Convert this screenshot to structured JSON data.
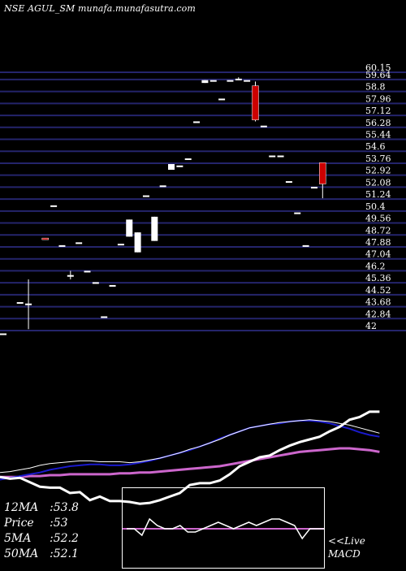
{
  "header": {
    "title": "NSE AGUL_SM munafa.munafasutra.com"
  },
  "chart_data": {
    "type": "candlestick",
    "price_levels": [
      "60.15",
      "59.64",
      "58.8",
      "57.96",
      "57.12",
      "56.28",
      "55.44",
      "54.6",
      "53.76",
      "52.92",
      "52.08",
      "51.24",
      "50.4",
      "49.56",
      "48.72",
      "47.88",
      "47.04",
      "46.2",
      "45.36",
      "44.52",
      "43.68",
      "42.84",
      "42"
    ],
    "ylim": [
      42,
      60.15
    ],
    "candles": [
      {
        "x": 0,
        "o": 41.8,
        "h": 41.8,
        "l": 41.8,
        "c": 41.8
      },
      {
        "x": 2,
        "o": 44.0,
        "h": 44.0,
        "l": 44.0,
        "c": 44.0
      },
      {
        "x": 3,
        "o": 43.9,
        "h": 45.6,
        "l": 42.1,
        "c": 43.9
      },
      {
        "x": 5,
        "o": 48.5,
        "h": 48.5,
        "l": 48.4,
        "c": 48.4
      },
      {
        "x": 6,
        "o": 50.8,
        "h": 50.8,
        "l": 50.8,
        "c": 50.8
      },
      {
        "x": 7,
        "o": 48.0,
        "h": 48.0,
        "l": 48.0,
        "c": 48.0
      },
      {
        "x": 8,
        "o": 45.9,
        "h": 46.2,
        "l": 45.6,
        "c": 45.9
      },
      {
        "x": 9,
        "o": 48.2,
        "h": 48.2,
        "l": 48.2,
        "c": 48.2
      },
      {
        "x": 10,
        "o": 46.2,
        "h": 46.2,
        "l": 46.2,
        "c": 46.2
      },
      {
        "x": 11,
        "o": 45.4,
        "h": 45.4,
        "l": 45.4,
        "c": 45.4
      },
      {
        "x": 12,
        "o": 43.0,
        "h": 43.0,
        "l": 43.0,
        "c": 43.0
      },
      {
        "x": 13,
        "o": 45.2,
        "h": 45.2,
        "l": 45.2,
        "c": 45.2
      },
      {
        "x": 14,
        "o": 48.1,
        "h": 48.1,
        "l": 48.1,
        "c": 48.1
      },
      {
        "x": 15,
        "o": 48.6,
        "h": 49.8,
        "l": 48.6,
        "c": 49.8
      },
      {
        "x": 16,
        "o": 47.5,
        "h": 48.9,
        "l": 47.5,
        "c": 48.9
      },
      {
        "x": 17,
        "o": 51.5,
        "h": 51.5,
        "l": 51.5,
        "c": 51.5
      },
      {
        "x": 18,
        "o": 48.3,
        "h": 50.0,
        "l": 48.3,
        "c": 50.0
      },
      {
        "x": 19,
        "o": 52.2,
        "h": 52.2,
        "l": 52.2,
        "c": 52.2
      },
      {
        "x": 20,
        "o": 53.3,
        "h": 53.7,
        "l": 53.3,
        "c": 53.7
      },
      {
        "x": 21,
        "o": 53.6,
        "h": 53.6,
        "l": 53.6,
        "c": 53.6
      },
      {
        "x": 22,
        "o": 54.1,
        "h": 54.1,
        "l": 54.1,
        "c": 54.1
      },
      {
        "x": 23,
        "o": 56.7,
        "h": 56.7,
        "l": 56.7,
        "c": 56.7
      },
      {
        "x": 24,
        "o": 59.4,
        "h": 59.6,
        "l": 59.4,
        "c": 59.6
      },
      {
        "x": 25,
        "o": 59.6,
        "h": 59.6,
        "l": 59.6,
        "c": 59.6
      },
      {
        "x": 26,
        "o": 58.3,
        "h": 58.3,
        "l": 58.3,
        "c": 58.3
      },
      {
        "x": 27,
        "o": 59.6,
        "h": 59.6,
        "l": 59.6,
        "c": 59.6
      },
      {
        "x": 28,
        "o": 59.7,
        "h": 59.8,
        "l": 59.6,
        "c": 59.7
      },
      {
        "x": 29,
        "o": 59.6,
        "h": 59.6,
        "l": 59.6,
        "c": 59.6
      },
      {
        "x": 30,
        "o": 59.2,
        "h": 59.5,
        "l": 56.7,
        "c": 56.8
      },
      {
        "x": 31,
        "o": 56.4,
        "h": 56.4,
        "l": 56.4,
        "c": 56.4
      },
      {
        "x": 32,
        "o": 54.3,
        "h": 54.3,
        "l": 54.3,
        "c": 54.3
      },
      {
        "x": 33,
        "o": 54.3,
        "h": 54.3,
        "l": 54.3,
        "c": 54.3
      },
      {
        "x": 34,
        "o": 52.5,
        "h": 52.5,
        "l": 52.5,
        "c": 52.5
      },
      {
        "x": 35,
        "o": 50.3,
        "h": 50.3,
        "l": 50.3,
        "c": 50.3
      },
      {
        "x": 36,
        "o": 48.0,
        "h": 48.0,
        "l": 48.0,
        "c": 48.0
      },
      {
        "x": 37,
        "o": 52.1,
        "h": 52.1,
        "l": 52.1,
        "c": 52.1
      },
      {
        "x": 38,
        "o": 53.8,
        "h": 53.8,
        "l": 51.3,
        "c": 52.3
      }
    ],
    "price_line": [
      28,
      26,
      27,
      22,
      17,
      16,
      16,
      10,
      11,
      2,
      6,
      1,
      1,
      0,
      -2,
      -1,
      2,
      6,
      10,
      19,
      21,
      21,
      24,
      31,
      40,
      45,
      50,
      52,
      58,
      63,
      67,
      70,
      73,
      79,
      84,
      92,
      95,
      101,
      101
    ],
    "ma_fast": [
      5,
      6,
      8,
      10,
      13,
      15,
      16,
      17,
      18,
      18,
      17,
      17,
      17,
      16,
      17,
      19,
      21,
      24,
      27,
      31,
      34,
      38,
      42,
      47,
      51,
      55,
      57,
      59,
      61,
      62,
      63,
      64,
      63,
      62,
      60,
      58,
      55,
      52,
      49
    ],
    "ma_mid": [
      -3,
      -1,
      1,
      3,
      5,
      8,
      10,
      12,
      13,
      14,
      14,
      13,
      13,
      14,
      16,
      18,
      21,
      24,
      27,
      30,
      34,
      38,
      43,
      47,
      51,
      55,
      57,
      59,
      60,
      62,
      63,
      63,
      62,
      60,
      57,
      54,
      50,
      47,
      45
    ],
    "ma_slow": [
      0,
      0,
      0,
      1,
      1,
      2,
      2,
      3,
      3,
      3,
      3,
      3,
      4,
      4,
      5,
      5,
      6,
      7,
      8,
      9,
      10,
      11,
      12,
      14,
      16,
      18,
      20,
      22,
      24,
      26,
      28,
      29,
      30,
      31,
      32,
      32,
      31,
      30,
      28
    ],
    "macd": [
      0,
      0,
      -2,
      3,
      1,
      0,
      0,
      1,
      -1,
      -1,
      0,
      1,
      2,
      1,
      0,
      1,
      2,
      1,
      2,
      3,
      3,
      2,
      1,
      -3,
      0,
      0,
      0
    ],
    "macd_signal": 0,
    "stats": {
      "ma12_label": "12MA",
      "ma12": "53.8",
      "price_label": "Price",
      "price": "53",
      "ma5_label": "5MA",
      "ma5": "52.2",
      "ma50_label": "50MA",
      "ma50": "52.1"
    },
    "live_label": "<<Live",
    "macd_label": "MACD",
    "colors": {
      "background": "#000000",
      "gridline": "#24246b",
      "up_candle": "#ffffff",
      "down_candle": "#cc0000",
      "price_line": "#ffffff",
      "ma_fast": "#ffffff",
      "ma_mid": "#1a1acc",
      "ma_slow": "#cc66cc",
      "macd_line": "#ffffff",
      "macd_signal": "#cc66cc"
    }
  }
}
